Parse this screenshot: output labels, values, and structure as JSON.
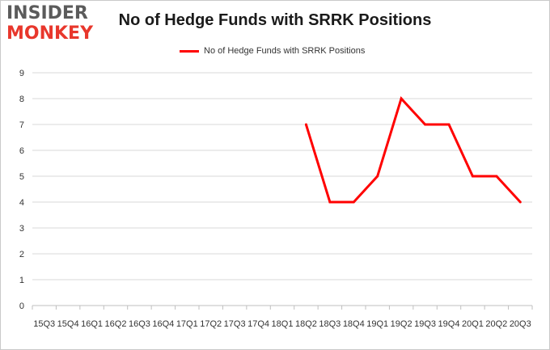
{
  "logo": {
    "line1": "INSIDER",
    "line2": "MONKEY"
  },
  "chart_data": {
    "type": "line",
    "title": "No of Hedge Funds with SRRK Positions",
    "xlabel": "",
    "ylabel": "",
    "ylim": [
      0,
      9
    ],
    "yticks": [
      0,
      1,
      2,
      3,
      4,
      5,
      6,
      7,
      8,
      9
    ],
    "grid": true,
    "legend_position": "top",
    "categories": [
      "15Q3",
      "15Q4",
      "16Q1",
      "16Q2",
      "16Q3",
      "16Q4",
      "17Q1",
      "17Q2",
      "17Q3",
      "17Q4",
      "18Q1",
      "18Q2",
      "18Q3",
      "18Q4",
      "19Q1",
      "19Q2",
      "19Q3",
      "19Q4",
      "20Q1",
      "20Q2",
      "20Q3"
    ],
    "series": [
      {
        "name": "No of Hedge Funds with SRRK Positions",
        "color": "#ff0000",
        "values": [
          null,
          null,
          null,
          null,
          null,
          null,
          null,
          null,
          null,
          null,
          null,
          7,
          4,
          4,
          5,
          8,
          7,
          7,
          5,
          5,
          4
        ]
      }
    ]
  }
}
